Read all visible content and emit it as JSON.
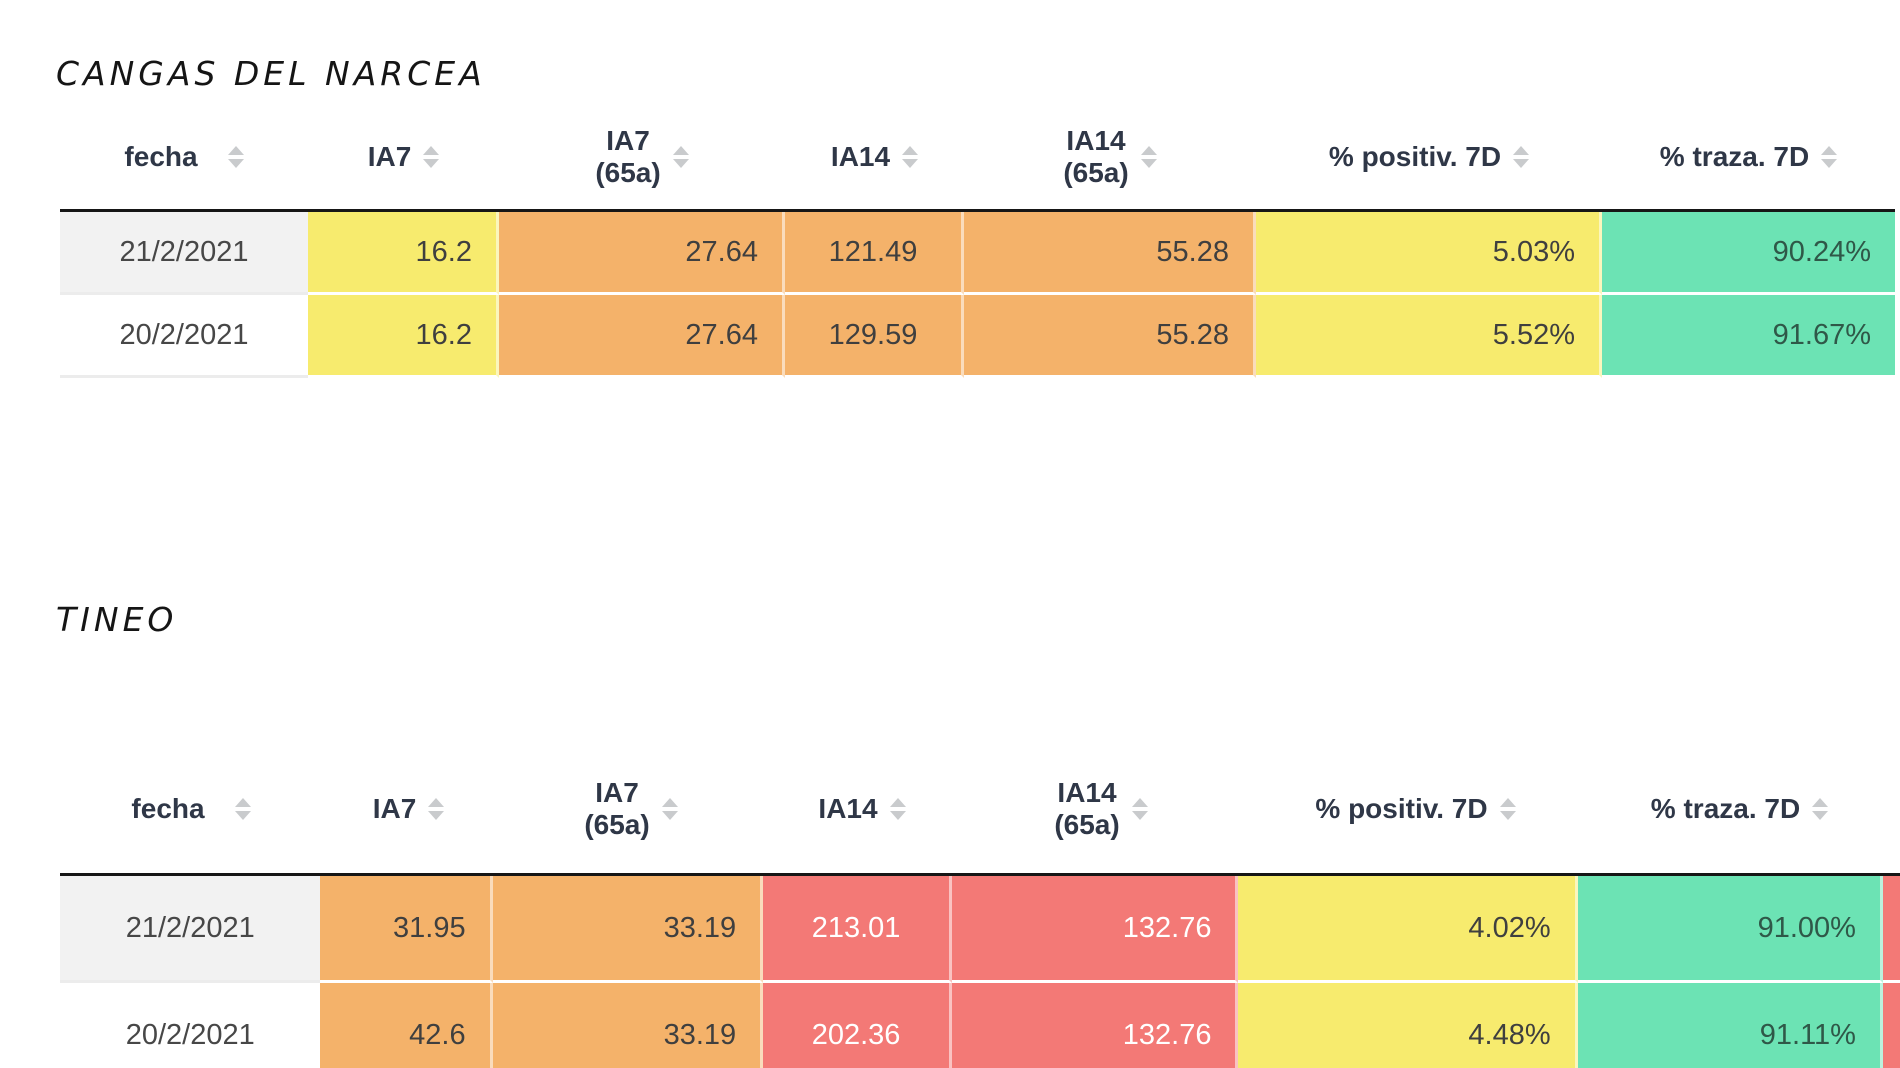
{
  "colors": {
    "yellow": "#F7EB6E",
    "orange": "#F4B26A",
    "red": "#F37976",
    "green": "#6CE3B4",
    "date_row_odd": "#F2F2F2",
    "date_row_even": "#FFFFFF",
    "header_text": "#2F3747",
    "body_text": "#3F3F3F",
    "red_cell_text": "#FFFFFF",
    "green_cell_text": "#2F5848",
    "sort_icon": "#C9CBCD",
    "tbody_top_border": "#161616"
  },
  "header": {
    "fecha": "fecha",
    "ia7": "IA7",
    "ia7_65a_line1": "IA7",
    "ia7_65a_line2": "(65a)",
    "ia14": "IA14",
    "ia14_65a_line1": "IA14",
    "ia14_65a_line2": "(65a)",
    "positiv": "% positiv. 7D",
    "traza": "% traza. 7D"
  },
  "tables": [
    {
      "title": "CANGAS DEL NARCEA",
      "rows": [
        {
          "fecha": "21/2/2021",
          "ia7": "16.2",
          "ia7_65a": "27.64",
          "ia14": "121.49",
          "ia14_65a": "55.28",
          "positiv": "5.03%",
          "traza": "90.24%"
        },
        {
          "fecha": "20/2/2021",
          "ia7": "16.2",
          "ia7_65a": "27.64",
          "ia14": "129.59",
          "ia14_65a": "55.28",
          "positiv": "5.52%",
          "traza": "91.67%"
        }
      ]
    },
    {
      "title": "TINEO",
      "rows": [
        {
          "fecha": "21/2/2021",
          "ia7": "31.95",
          "ia7_65a": "33.19",
          "ia14": "213.01",
          "ia14_65a": "132.76",
          "positiv": "4.02%",
          "traza": "91.00%"
        },
        {
          "fecha": "20/2/2021",
          "ia7": "42.6",
          "ia7_65a": "33.19",
          "ia14": "202.36",
          "ia14_65a": "132.76",
          "positiv": "4.48%",
          "traza": "91.11%"
        }
      ]
    }
  ]
}
